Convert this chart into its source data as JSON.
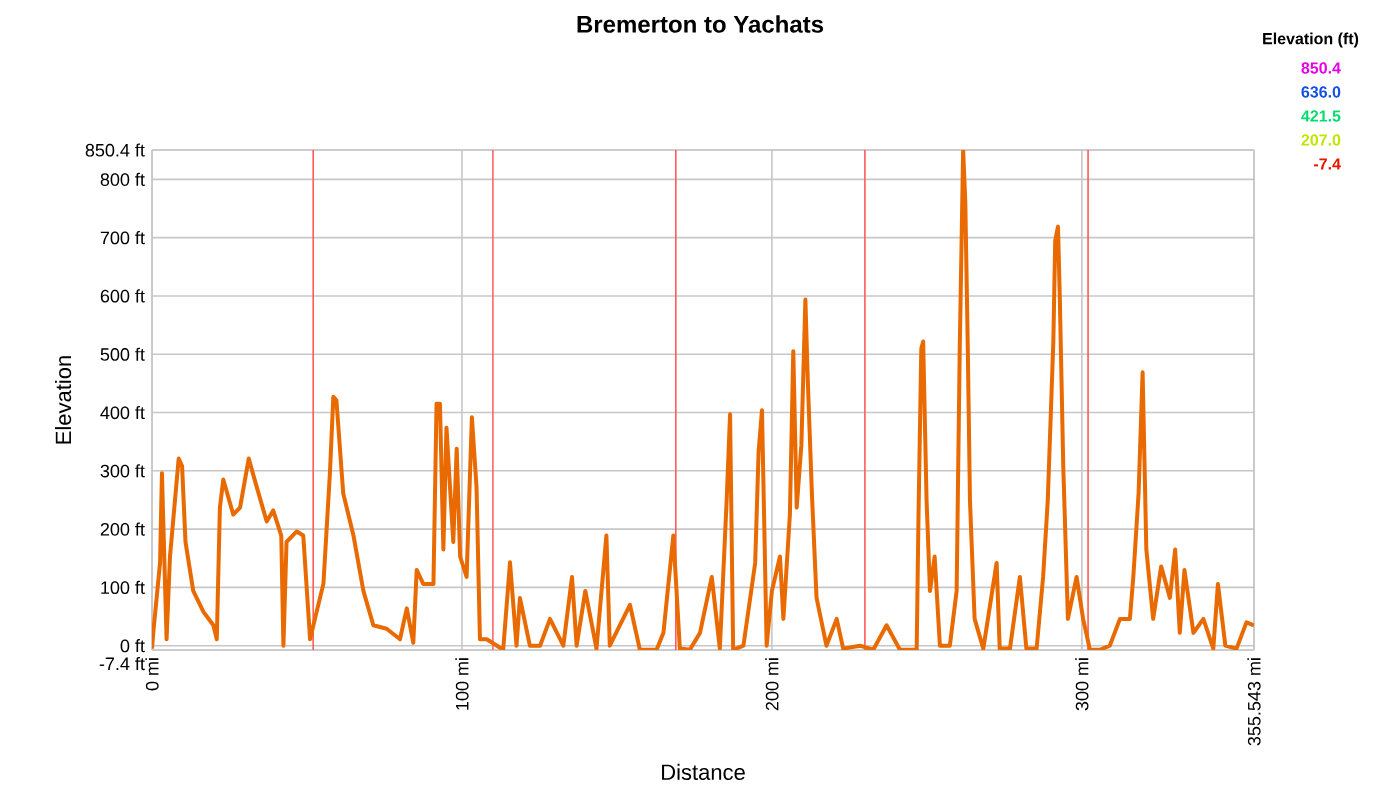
{
  "chart_data": {
    "type": "line",
    "title": "Bremerton to Yachats",
    "xlabel": "Distance",
    "ylabel": "Elevation",
    "legend_title": "Elevation (ft)",
    "annotations": [
      "850.4",
      "636.0",
      "421.5",
      "207.0",
      "-7.4"
    ],
    "x": [
      0,
      0.4,
      2.6,
      3.2,
      4.7,
      5.8,
      8.6,
      9.7,
      10.8,
      13.3,
      16.6,
      19.8,
      20.9,
      21.9,
      23,
      26.2,
      28.4,
      31.2,
      33.8,
      37,
      39.1,
      41.7,
      42.4,
      43.4,
      46.7,
      48.8,
      51,
      53.1,
      55.3,
      57.4,
      58.5,
      59.5,
      61.7,
      65,
      68.2,
      71.4,
      75.7,
      80,
      82.2,
      84.3,
      85.4,
      87.5,
      90.8,
      91.8,
      92.9,
      94,
      95,
      97.2,
      98.3,
      99.4,
      101.5,
      103.2,
      104.7,
      105.8,
      108,
      113.3,
      115.5,
      117.6,
      118.7,
      121.9,
      125.2,
      128.4,
      132.7,
      135.5,
      137,
      139.8,
      143.4,
      146.6,
      147.7,
      154.2,
      157.4,
      162.8,
      165,
      168.2,
      170.3,
      173.5,
      176.8,
      180.6,
      183.2,
      185.4,
      186.5,
      187.5,
      190.8,
      194.6,
      195.7,
      196.8,
      198.3,
      200,
      202.6,
      203.7,
      205.8,
      206.9,
      208,
      209.5,
      210.8,
      211.6,
      212.9,
      214.4,
      217.6,
      220.9,
      223,
      228.4,
      232.7,
      237,
      241.3,
      246.7,
      247.3,
      248.2,
      248.8,
      249.9,
      251,
      252.5,
      254.2,
      257.4,
      259.6,
      260.6,
      261.3,
      261.7,
      262.4,
      263.2,
      263.9,
      265.4,
      268.2,
      272.5,
      273.5,
      276.8,
      280,
      282.1,
      285.4,
      287.5,
      289,
      290.8,
      291.4,
      292.3,
      292.9,
      294,
      295.5,
      298.3,
      300.4,
      302.6,
      305.8,
      309,
      312.3,
      315.5,
      316.6,
      318.3,
      319.6,
      320.8,
      323,
      325.6,
      328.4,
      330.1,
      331.6,
      333.1,
      336,
      339.2,
      342.4,
      343.9,
      346.3,
      349.9,
      353.1,
      355.5
    ],
    "series": [
      {
        "color": "#e86a00",
        "values": [
          -5,
          22,
          143,
          296,
          11,
          153,
          321,
          308,
          178,
          94,
          58,
          35,
          11,
          237,
          285,
          225,
          237,
          321,
          272,
          213,
          232,
          189,
          0,
          178,
          196,
          189,
          11,
          58,
          106,
          296,
          427,
          421,
          261,
          189,
          94,
          35,
          29,
          11,
          64,
          5,
          130,
          106,
          106,
          415,
          415,
          165,
          374,
          178,
          338,
          153,
          118,
          392,
          272,
          11,
          11,
          -7,
          143,
          0,
          82,
          0,
          0,
          46,
          0,
          118,
          0,
          94,
          -5,
          189,
          0,
          70,
          -7,
          -7,
          22,
          189,
          -5,
          -7,
          22,
          118,
          -5,
          249,
          397,
          -7,
          0,
          142,
          332,
          404,
          0,
          94,
          153,
          46,
          225,
          505,
          237,
          344,
          594,
          451,
          261,
          82,
          0,
          46,
          -5,
          0,
          -7,
          35,
          -7,
          -7,
          225,
          510,
          522,
          249,
          94,
          153,
          0,
          0,
          94,
          510,
          725,
          850,
          760,
          510,
          249,
          46,
          -5,
          142,
          -5,
          -5,
          118,
          -5,
          -5,
          118,
          249,
          522,
          695,
          719,
          594,
          308,
          46,
          118,
          46,
          -7,
          -7,
          0,
          46,
          46,
          118,
          261,
          469,
          165,
          46,
          136,
          82,
          165,
          22,
          130,
          22,
          46,
          -5,
          106,
          0,
          -5,
          40,
          35
        ]
      }
    ],
    "xlim": [
      0,
      355.543
    ],
    "ylim": [
      -7.4,
      850.4
    ],
    "xticks": [
      {
        "value": 0,
        "label": "0 mi"
      },
      {
        "value": 100,
        "label": "100 mi"
      },
      {
        "value": 200,
        "label": "200 mi"
      },
      {
        "value": 300,
        "label": "300 mi"
      },
      {
        "value": 355.543,
        "label": "355.543 mi"
      }
    ],
    "yticks": [
      {
        "value": -7.4,
        "label": "-7.4 ft"
      },
      {
        "value": 0,
        "label": "0 ft"
      },
      {
        "value": 100,
        "label": "100 ft"
      },
      {
        "value": 200,
        "label": "200 ft"
      },
      {
        "value": 300,
        "label": "300 ft"
      },
      {
        "value": 400,
        "label": "400 ft"
      },
      {
        "value": 500,
        "label": "500 ft"
      },
      {
        "value": 600,
        "label": "600 ft"
      },
      {
        "value": 700,
        "label": "700 ft"
      },
      {
        "value": 800,
        "label": "800 ft"
      },
      {
        "value": 850.4,
        "label": "850.4 ft"
      }
    ],
    "grid": true,
    "ref_lines": [
      {
        "axis": "x",
        "value": 52,
        "color": "#ff5a5a"
      },
      {
        "axis": "x",
        "value": 110,
        "color": "#ff5a5a"
      },
      {
        "axis": "x",
        "value": 169,
        "color": "#ff5a5a"
      },
      {
        "axis": "x",
        "value": 230,
        "color": "#ff5a5a"
      },
      {
        "axis": "x",
        "value": 302,
        "color": "#ff5a5a"
      }
    ]
  }
}
